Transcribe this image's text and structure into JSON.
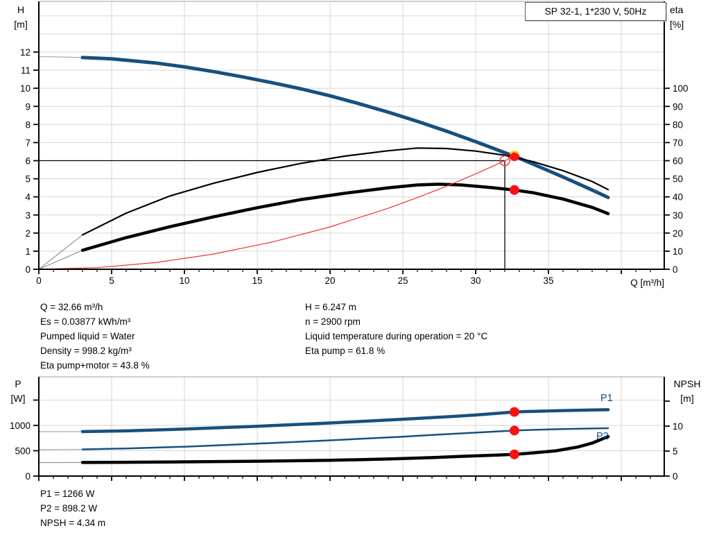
{
  "header": {
    "title_box": "SP 32-1, 1*230 V, 50Hz"
  },
  "info_top": {
    "left": [
      "Q = 32.66 m³/h",
      "Es = 0.03877 kWh/m³",
      "Pumped liquid = Water",
      "Density = 998.2 kg/m³",
      "Eta pump+motor = 43.8 %"
    ],
    "right": [
      "H = 6.247 m",
      "n = 2900 rpm",
      "Liquid temperature during operation = 20 °C",
      "Eta pump = 61.8 %"
    ]
  },
  "info_bottom": [
    "P1 = 1266 W",
    "P2 = 898.2 W",
    "NPSH = 4.34 m"
  ],
  "colors": {
    "curve_blue": "#17507E",
    "curve_black": "#000000",
    "duty_red": "#f03030",
    "dot_red": "#fa1010",
    "highlight_yellow": "#ffd900",
    "grid": "#d6d6d6",
    "frame_gray": "#b0b0b0",
    "lead_gray": "#8a8a8a",
    "lead_blue": "#8fa5b8",
    "axis_black": "#000000"
  },
  "chart_data": [
    {
      "type": "line",
      "name": "qh-eta-chart",
      "title": "SP 32-1, 1*230 V, 50Hz",
      "x_axis": {
        "label": "Q [m³/h]",
        "min": 0,
        "max": 42.95,
        "grid_step": 5,
        "tick_minor": 1,
        "tick_labels": [
          0,
          5,
          10,
          15,
          20,
          25,
          30,
          35
        ]
      },
      "y_left": {
        "label": "H [m]",
        "label_lines": [
          "H",
          "[m]"
        ],
        "min": 0,
        "max": 14.8,
        "grid_step": 1,
        "tick_labels": [
          0,
          1,
          2,
          3,
          4,
          5,
          6,
          7,
          8,
          9,
          10,
          11,
          12
        ],
        "extra_ticks": []
      },
      "y_right": {
        "label": "eta [%]",
        "label_lines": [
          "eta",
          "[%]"
        ],
        "min": 0,
        "max": 148,
        "grid_step": 10,
        "tick_labels": [
          0,
          10,
          20,
          30,
          40,
          50,
          60,
          70,
          80,
          90,
          100
        ],
        "extra_ticks": []
      },
      "series": [
        {
          "name": "head-curve",
          "axis": "left",
          "color": "curve_blue",
          "width": 5,
          "lead": [
            [
              0,
              11.75
            ],
            [
              1.5,
              11.73
            ],
            [
              3,
              11.7
            ]
          ],
          "points": [
            [
              3,
              11.7
            ],
            [
              5,
              11.63
            ],
            [
              8,
              11.4
            ],
            [
              10,
              11.18
            ],
            [
              12,
              10.92
            ],
            [
              14,
              10.63
            ],
            [
              16,
              10.31
            ],
            [
              18,
              9.97
            ],
            [
              20,
              9.58
            ],
            [
              22,
              9.15
            ],
            [
              24,
              8.68
            ],
            [
              26,
              8.17
            ],
            [
              28,
              7.63
            ],
            [
              30,
              7.05
            ],
            [
              32,
              6.44
            ],
            [
              32.66,
              6.25
            ],
            [
              34,
              5.79
            ],
            [
              36,
              5.1
            ],
            [
              38,
              4.38
            ],
            [
              39.1,
              3.97
            ]
          ]
        },
        {
          "name": "eta-pump-curve",
          "axis": "right",
          "color": "curve_black",
          "width": 2.2,
          "lead": [
            [
              0,
              0
            ],
            [
              3,
              19
            ]
          ],
          "points": [
            [
              3,
              19
            ],
            [
              6,
              31
            ],
            [
              9,
              40.5
            ],
            [
              12,
              47.5
            ],
            [
              15,
              53.5
            ],
            [
              18,
              58.5
            ],
            [
              21,
              62.5
            ],
            [
              24,
              65.5
            ],
            [
              26,
              67
            ],
            [
              28,
              66.7
            ],
            [
              30,
              65.3
            ],
            [
              32,
              63
            ],
            [
              32.66,
              61.8
            ],
            [
              34,
              59.3
            ],
            [
              36,
              54.5
            ],
            [
              38,
              48.5
            ],
            [
              39.1,
              44
            ]
          ]
        },
        {
          "name": "eta-pump-motor-curve",
          "axis": "right",
          "color": "curve_black",
          "width": 4.5,
          "lead": [
            [
              0,
              0
            ],
            [
              3,
              10.5
            ]
          ],
          "points": [
            [
              3,
              10.5
            ],
            [
              6,
              17.5
            ],
            [
              9,
              23.5
            ],
            [
              12,
              29
            ],
            [
              15,
              34
            ],
            [
              18,
              38.5
            ],
            [
              21,
              42
            ],
            [
              24,
              45
            ],
            [
              26,
              46.6
            ],
            [
              27.5,
              47
            ],
            [
              29,
              46.6
            ],
            [
              31,
              45.2
            ],
            [
              32.66,
              43.8
            ],
            [
              34,
              42.2
            ],
            [
              36,
              38.8
            ],
            [
              38,
              34.2
            ],
            [
              39.1,
              30.7
            ]
          ]
        },
        {
          "name": "system-curve",
          "axis": "left",
          "color": "duty_red",
          "width": 1.2,
          "points": [
            [
              0,
              0
            ],
            [
              4,
              0.09
            ],
            [
              8,
              0.37
            ],
            [
              12,
              0.84
            ],
            [
              16,
              1.5
            ],
            [
              20,
              2.34
            ],
            [
              24,
              3.37
            ],
            [
              26,
              3.96
            ],
            [
              28,
              4.59
            ],
            [
              30,
              5.27
            ],
            [
              31,
              5.63
            ],
            [
              32,
              6.0
            ],
            [
              32.66,
              6.25
            ],
            [
              32.9,
              6.34
            ]
          ]
        }
      ],
      "duty": {
        "requested": {
          "q": 32,
          "h": 6
        },
        "circle": {
          "q": 32,
          "h": 6
        },
        "dots": [
          {
            "axis": "left",
            "q": 32.66,
            "v": 6.247,
            "highlight": true
          },
          {
            "axis": "right",
            "q": 32.66,
            "v": 43.8,
            "highlight": false
          }
        ]
      },
      "labels": []
    },
    {
      "type": "line",
      "name": "power-npsh-chart",
      "x_axis": {
        "label": "",
        "min": 0,
        "max": 42.95,
        "grid_step": 5,
        "tick_minor": 1,
        "tick_labels": []
      },
      "y_left": {
        "label": "P [W]",
        "label_lines": [
          "P",
          "[W]"
        ],
        "min": 0,
        "max": 1959,
        "grid_step": 500,
        "tick_labels": [
          0,
          500,
          1000
        ],
        "extra_ticks": [
          1500
        ]
      },
      "y_right": {
        "label": "NPSH [m]",
        "label_lines": [
          "NPSH",
          "[m]"
        ],
        "min": 0,
        "max": 19.86,
        "grid_step": 5,
        "tick_labels": [
          0,
          5,
          10
        ],
        "extra_ticks": [
          15
        ]
      },
      "series": [
        {
          "name": "p1-curve",
          "axis": "left",
          "color": "curve_blue",
          "width": 4.5,
          "lead": [
            [
              0,
              875
            ],
            [
              3,
              878
            ]
          ],
          "points": [
            [
              3,
              878
            ],
            [
              6,
              892
            ],
            [
              10,
              928
            ],
            [
              15,
              983
            ],
            [
              20,
              1048
            ],
            [
              25,
              1122
            ],
            [
              28,
              1170
            ],
            [
              30,
              1205
            ],
            [
              32.66,
              1266
            ],
            [
              34,
              1278
            ],
            [
              36,
              1293
            ],
            [
              38,
              1305
            ],
            [
              39.1,
              1310
            ]
          ]
        },
        {
          "name": "p2-curve",
          "axis": "left",
          "color": "curve_blue",
          "width": 2.5,
          "lead": [
            [
              0,
              523
            ],
            [
              3,
              528
            ]
          ],
          "points": [
            [
              3,
              528
            ],
            [
              6,
              545
            ],
            [
              10,
              580
            ],
            [
              15,
              640
            ],
            [
              20,
              705
            ],
            [
              25,
              778
            ],
            [
              28,
              828
            ],
            [
              30,
              858
            ],
            [
              32.66,
              898
            ],
            [
              34,
              912
            ],
            [
              36,
              928
            ],
            [
              38,
              940
            ],
            [
              39.1,
              945
            ]
          ]
        },
        {
          "name": "npsh-curve",
          "axis": "right",
          "color": "curve_black",
          "width": 4.5,
          "lead": [
            [
              0,
              2.7
            ],
            [
              3,
              2.72
            ]
          ],
          "points": [
            [
              3,
              2.72
            ],
            [
              6,
              2.76
            ],
            [
              10,
              2.85
            ],
            [
              15,
              2.97
            ],
            [
              20,
              3.15
            ],
            [
              24,
              3.42
            ],
            [
              27,
              3.7
            ],
            [
              29,
              3.95
            ],
            [
              31,
              4.15
            ],
            [
              32.66,
              4.34
            ],
            [
              34,
              4.65
            ],
            [
              35.5,
              5.05
            ],
            [
              37,
              5.8
            ],
            [
              38,
              6.6
            ],
            [
              39.1,
              7.9
            ]
          ]
        }
      ],
      "duty": {
        "dots": [
          {
            "axis": "left",
            "q": 32.66,
            "v": 1266,
            "highlight": false
          },
          {
            "axis": "left",
            "q": 32.66,
            "v": 898.2,
            "highlight": false
          },
          {
            "axis": "right",
            "q": 32.66,
            "v": 4.34,
            "highlight": false
          }
        ]
      },
      "labels": [
        {
          "text": "P1",
          "x": 866,
          "y": 578
        },
        {
          "text": "P2",
          "x": 860,
          "y": 633
        }
      ]
    }
  ]
}
